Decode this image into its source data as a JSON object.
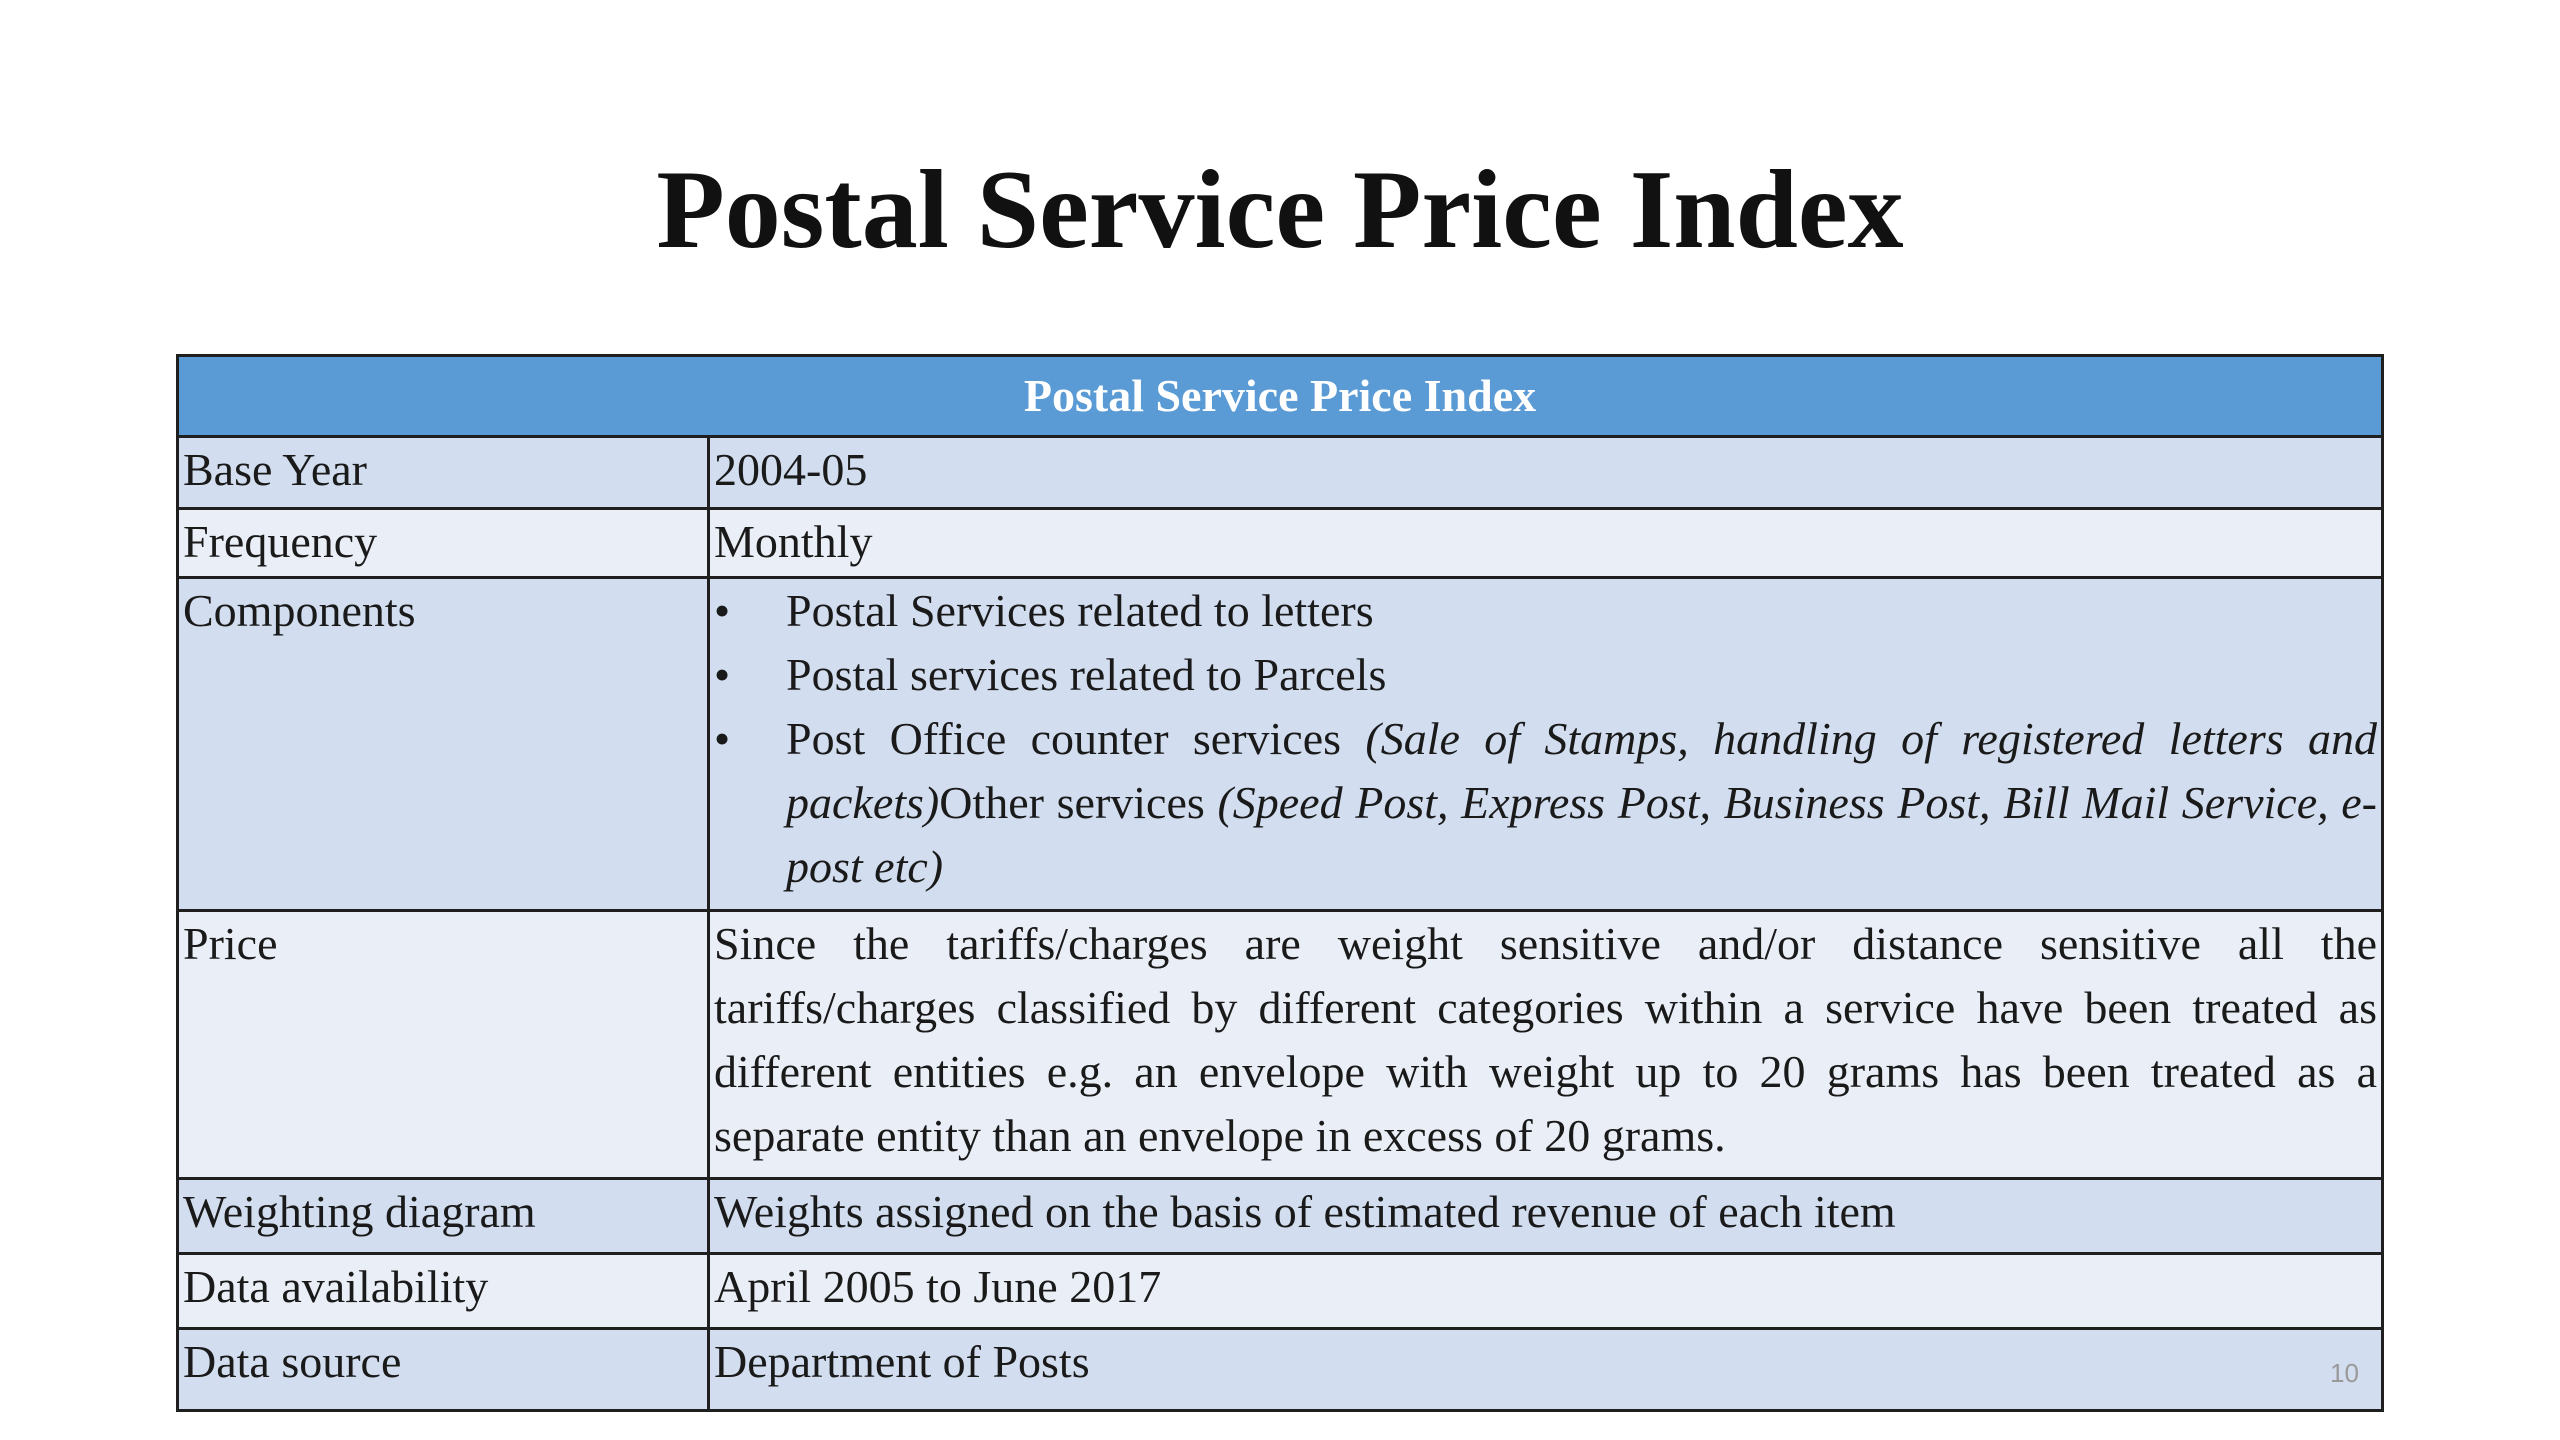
{
  "title": "Postal Service Price Index",
  "table": {
    "header": "Postal Service Price Index",
    "rows": [
      {
        "label": "Base Year",
        "value": "2004-05"
      },
      {
        "label": "Frequency",
        "value": "Monthly"
      },
      {
        "label": "Components",
        "items": [
          [
            {
              "text": "Postal Services related to letters",
              "italic": false
            }
          ],
          [
            {
              "text": "Postal services related to Parcels",
              "italic": false
            }
          ],
          [
            {
              "text": "Post Office counter services ",
              "italic": false
            },
            {
              "text": "(Sale of Stamps, handling of registered letters and packets)",
              "italic": true
            },
            {
              "text": "Other services ",
              "italic": false
            },
            {
              "text": "(Speed Post, Express Post, Business Post, Bill Mail Service, e-post etc)",
              "italic": true
            }
          ]
        ]
      },
      {
        "label": "Price",
        "value": "Since the tariffs/charges are weight sensitive and/or distance sensitive all the tariffs/charges classified by different categories within a service have been treated as different entities e.g. an envelope with weight up to 20 grams has been treated as a separate entity than an envelope in excess of 20 grams."
      },
      {
        "label": "Weighting diagram",
        "value": "Weights assigned on the basis of estimated revenue of each item"
      },
      {
        "label": "Data availability",
        "value": "April 2005 to June 2017"
      },
      {
        "label": "Data source",
        "value": "Department of Posts"
      }
    ]
  },
  "page_number": "10"
}
